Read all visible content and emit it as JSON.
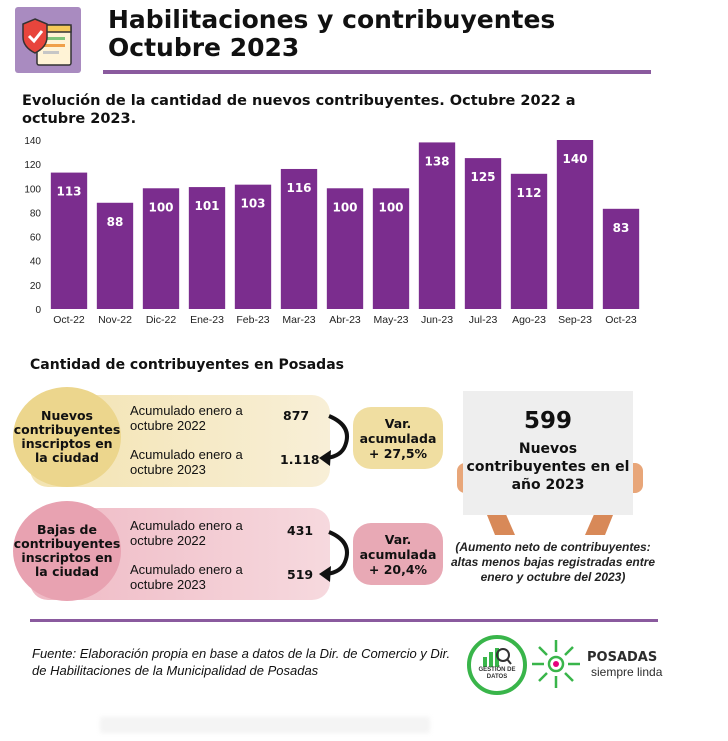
{
  "header": {
    "title_line1": "Habilitaciones y contribuyentes",
    "title_line2": "Octubre 2023"
  },
  "chart_data": {
    "type": "bar",
    "title": "Evolución de la cantidad de nuevos contribuyentes. Octubre 2022 a octubre 2023.",
    "categories": [
      "Oct-22",
      "Nov-22",
      "Dic-22",
      "Ene-23",
      "Feb-23",
      "Mar-23",
      "Abr-23",
      "May-23",
      "Jun-23",
      "Jul-23",
      "Ago-23",
      "Sep-23",
      "Oct-23"
    ],
    "values": [
      113,
      88,
      100,
      101,
      103,
      116,
      100,
      100,
      138,
      125,
      112,
      140,
      83
    ],
    "ylim": [
      0,
      140
    ],
    "yticks": [
      0,
      20,
      40,
      60,
      80,
      100,
      120,
      140
    ],
    "grid": false,
    "bar_color": "#7b2d8e"
  },
  "section": {
    "title": "Cantidad de contribuyentes en Posadas"
  },
  "nuevos": {
    "circle_label": "Nuevos contribuyentes inscriptos en la ciudad",
    "row1_label": "Acumulado enero a octubre 2022",
    "row1_value": "877",
    "row2_label": "Acumulado enero a octubre 2023",
    "row2_value": "1.118",
    "var_label": "Var. acumulada + 27,5%"
  },
  "bajas": {
    "circle_label": "Bajas de contribuyentes inscriptos en la ciudad",
    "row1_label": "Acumulado enero a octubre 2022",
    "row1_value": "431",
    "row2_label": "Acumulado enero a octubre 2023",
    "row2_value": "519",
    "var_label": "Var. acumulada + 20,4%"
  },
  "highlight": {
    "number": "599",
    "text": "Nuevos contribuyentes en el año 2023",
    "note": "(Aumento neto de contribuyentes: altas menos bajas registradas entre enero y octubre del 2023)"
  },
  "footer": {
    "source": "Fuente: Elaboración propia en base a datos de la Dir. de Comercio  y Dir. de Habilitaciones de la Municipalidad de Posadas",
    "gestion_logo_text": "GESTIÓN DE DATOS",
    "posadas_name": "POSADAS",
    "posadas_tagline": "siempre linda"
  },
  "colors": {
    "accent": "#7b2d8e",
    "yellow_panel": "#f3e3b0",
    "pink_panel": "#efb9c4"
  }
}
